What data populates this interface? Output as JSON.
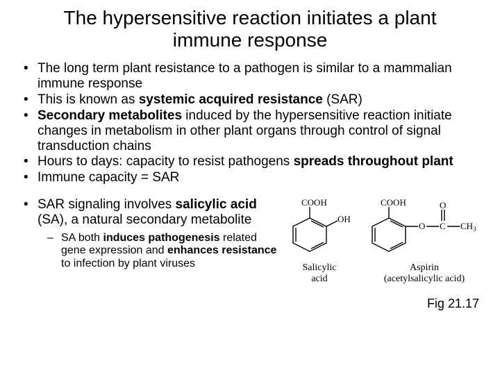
{
  "title": "The hypersensitive reaction initiates a plant immune response",
  "bullets": {
    "b1_a": "The long term plant resistance to a pathogen is similar to a mammalian immune response",
    "b2_a": "This is known as ",
    "b2_b": "systemic acquired resistance",
    "b2_c": " (SAR)",
    "b3_a": "Secondary metabolites",
    "b3_b": " induced by the hypersensitive reaction initiate changes in metabolism in other plant organs through control of signal transduction chains",
    "b4_a": "Hours to days: capacity to resist pathogens ",
    "b4_b": "spreads throughout plant",
    "b5_a": "Immune capacity = SAR",
    "b6_a": "SAR signaling involves ",
    "b6_b": "salicylic acid",
    "b6_c": " (SA), a natural secondary metabolite",
    "s1_a": "SA both ",
    "s1_b": "induces pathogenesis",
    "s1_c": " related gene expression and ",
    "s1_d": "enhances resistance",
    "s1_e": " to infection by plant viruses"
  },
  "chem": {
    "sa": {
      "cooh": "COOH",
      "oh": "OH",
      "name": "Salicylic\nacid"
    },
    "asp": {
      "cooh": "COOH",
      "o": "O",
      "o2": "O",
      "c": "C",
      "ch3": "CH",
      "sub3": "3",
      "name": "Aspirin\n(acetylsalicylic acid)"
    }
  },
  "figcap": "Fig 21.17",
  "style": {
    "text_color": "#000000",
    "bg": "#ffffff",
    "title_fontsize": 28,
    "bullet_fontsize": 19,
    "sub_fontsize": 16,
    "chem_label_fontsize": 14,
    "mol_stroke": "#000000",
    "mol_stroke_width": 1.4
  }
}
